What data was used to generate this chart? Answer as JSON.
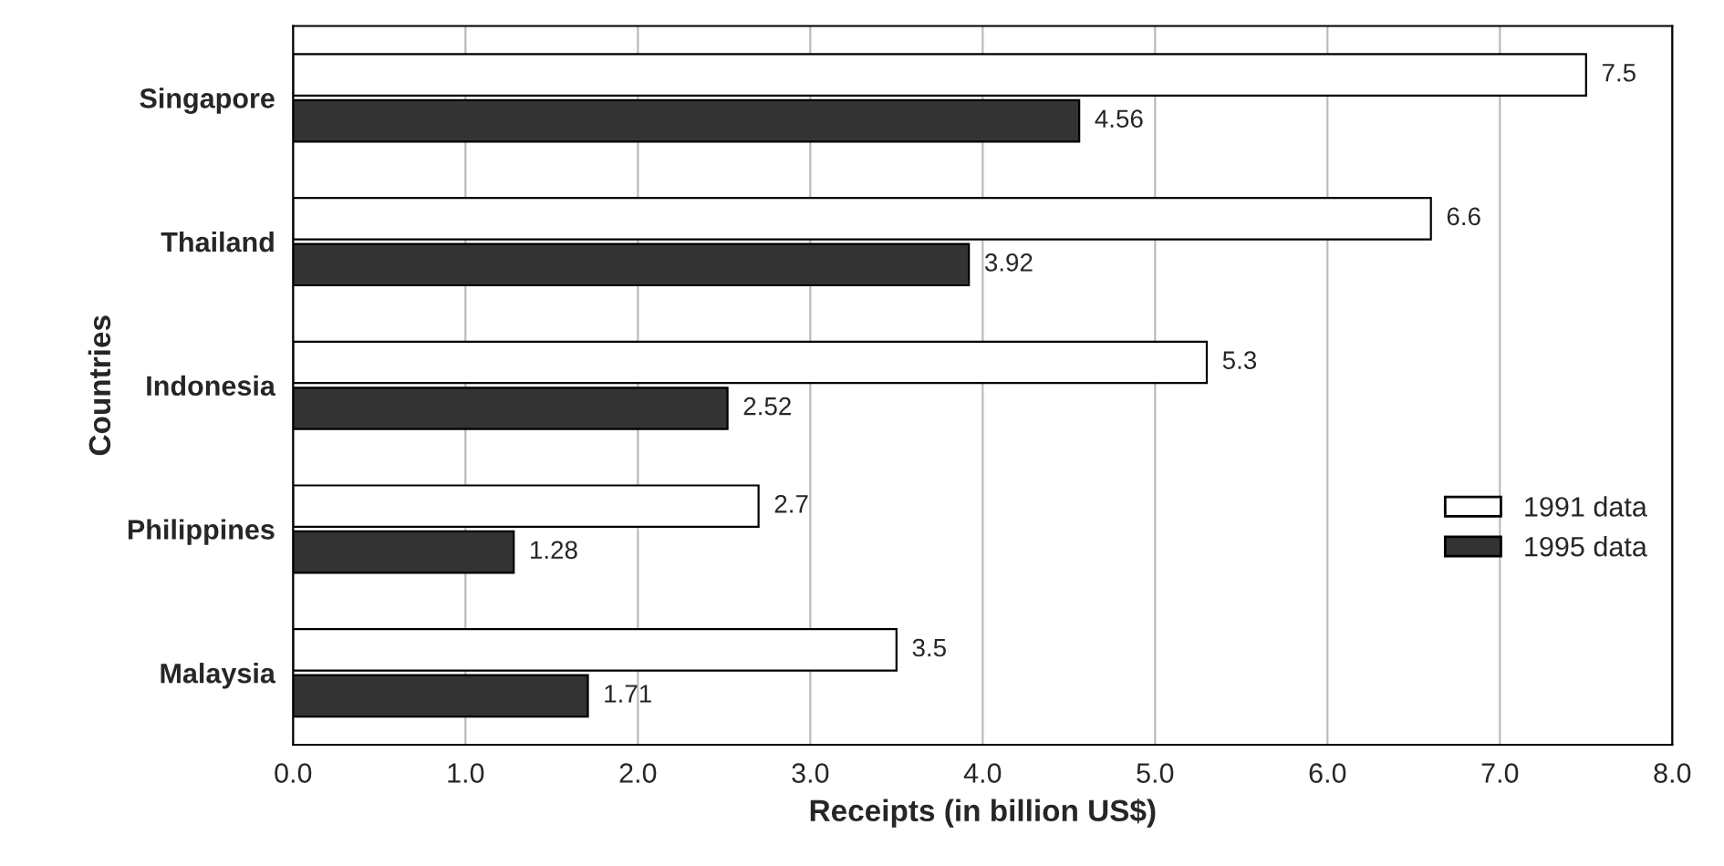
{
  "chart_data": {
    "type": "bar",
    "orientation": "horizontal",
    "categories": [
      "Singapore",
      "Thailand",
      "Indonesia",
      "Philippines",
      "Malaysia"
    ],
    "series": [
      {
        "name": "1991 data",
        "color": "#ffffff",
        "values": [
          7.5,
          6.6,
          5.3,
          2.7,
          3.5
        ]
      },
      {
        "name": "1995 data",
        "color": "#333333",
        "values": [
          4.56,
          3.92,
          2.52,
          1.28,
          1.71
        ]
      }
    ],
    "xlim": [
      0,
      8
    ],
    "xticks": [
      {
        "value": 0,
        "label": "0.0"
      },
      {
        "value": 1,
        "label": "1.0"
      },
      {
        "value": 2,
        "label": "2.0"
      },
      {
        "value": 3,
        "label": "3.0"
      },
      {
        "value": 4,
        "label": "4.0"
      },
      {
        "value": 5,
        "label": "5.0"
      },
      {
        "value": 6,
        "label": "6.0"
      },
      {
        "value": 7,
        "label": "7.0"
      },
      {
        "value": 8,
        "label": "8.0"
      }
    ],
    "xlabel": "Receipts (in billion US$)",
    "ylabel": "Countries",
    "data_labels": true,
    "grid": "x",
    "legend": "right"
  }
}
